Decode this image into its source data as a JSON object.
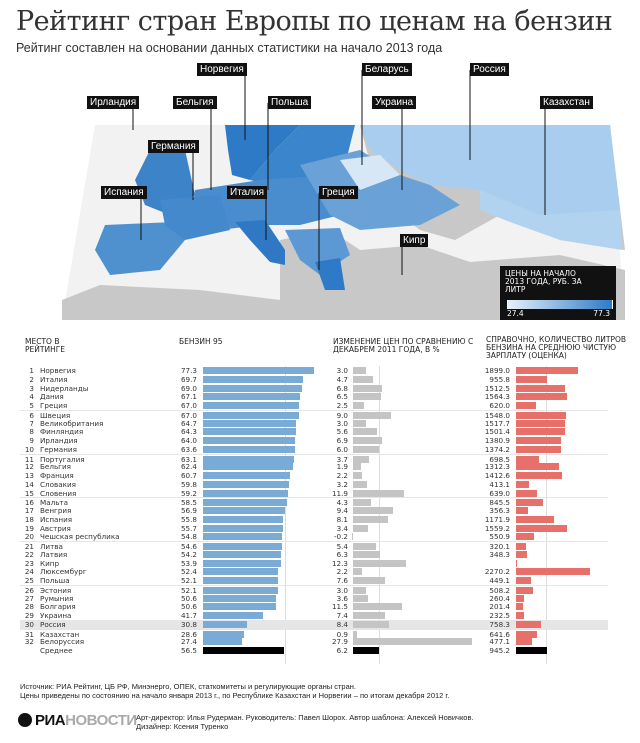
{
  "title": "Рейтинг стран Европы по ценам на бензин",
  "subtitle": "Рейтинг составлен на основании данных статистики на начало 2013 года",
  "map": {
    "labels": [
      "Норвегия",
      "Беларусь",
      "Россия",
      "Ирландия",
      "Бельгия",
      "Польша",
      "Украина",
      "Казахстан",
      "Германия",
      "Испания",
      "Италия",
      "Греция",
      "Кипр"
    ],
    "legend": {
      "title": "ЦЕНЫ НА НАЧАЛО 2013 ГОДА, РУБ. ЗА ЛИТР",
      "min": "27.4",
      "max": "77.3",
      "color_min": "#e6f0fa",
      "color_max": "#2f7ac6"
    },
    "land_color": "#c8c8c8",
    "sea_color": "#f2f2f2"
  },
  "chart_data": {
    "type": "table",
    "headers": {
      "rank": "МЕСТО В РЕЙТИНГЕ",
      "petrol": "БЕНЗИН 95",
      "change": "ИЗМЕНЕНИЕ ЦЕН ПО СРАВНЕНИЮ С ДЕКАБРЕМ 2011 ГОДА, В %",
      "liters": "СПРАВОЧНО, КОЛИЧЕСТВО ЛИТРОВ БЕНЗИНА НА СРЕДНЮЮ ЧИСТУЮ ЗАРПЛАТУ (ОЦЕНКА)"
    },
    "colors": {
      "petrol": "#7aaad6",
      "change": "#c4c4c4",
      "liters": "#e8706a",
      "average": "#000000"
    },
    "rows": [
      {
        "rank": "1",
        "country": "Норвегия",
        "petrol": 77.3,
        "change": 3.0,
        "liters": 1899.0
      },
      {
        "rank": "2",
        "country": "Италия",
        "petrol": 69.7,
        "change": 4.7,
        "liters": 955.8
      },
      {
        "rank": "3",
        "country": "Нидерланды",
        "petrol": 69.0,
        "change": 6.8,
        "liters": 1512.5
      },
      {
        "rank": "4",
        "country": "Дания",
        "petrol": 67.1,
        "change": 6.5,
        "liters": 1564.3
      },
      {
        "rank": "5",
        "country": "Греция",
        "petrol": 67.0,
        "change": 2.5,
        "liters": 620.0
      },
      {
        "rank": "6",
        "country": "Швеция",
        "petrol": 67.0,
        "change": 9.0,
        "liters": 1548.0
      },
      {
        "rank": "7",
        "country": "Великобритания",
        "petrol": 64.7,
        "change": 3.0,
        "liters": 1517.7
      },
      {
        "rank": "8",
        "country": "Финляндия",
        "petrol": 64.3,
        "change": 5.6,
        "liters": 1501.4
      },
      {
        "rank": "9",
        "country": "Ирландия",
        "petrol": 64.0,
        "change": 6.9,
        "liters": 1380.9
      },
      {
        "rank": "10",
        "country": "Германия",
        "petrol": 63.6,
        "change": 6.0,
        "liters": 1374.2
      },
      {
        "rank": "11",
        "country": "Португалия",
        "petrol": 63.1,
        "change": 3.7,
        "liters": 698.5
      },
      {
        "rank": "12",
        "country": "Бельгия",
        "petrol": 62.4,
        "change": 1.9,
        "liters": 1312.3
      },
      {
        "rank": "13",
        "country": "Франция",
        "petrol": 60.7,
        "change": 2.2,
        "liters": 1412.6
      },
      {
        "rank": "14",
        "country": "Словакия",
        "petrol": 59.8,
        "change": 3.2,
        "liters": 413.1
      },
      {
        "rank": "15",
        "country": "Словения",
        "petrol": 59.2,
        "change": 11.9,
        "liters": 639.0
      },
      {
        "rank": "16",
        "country": "Мальта",
        "petrol": 58.5,
        "change": 4.3,
        "liters": 845.5
      },
      {
        "rank": "17",
        "country": "Венгрия",
        "petrol": 56.9,
        "change": 9.4,
        "liters": 356.3
      },
      {
        "rank": "18",
        "country": "Испания",
        "petrol": 55.8,
        "change": 8.1,
        "liters": 1171.9
      },
      {
        "rank": "19",
        "country": "Австрия",
        "petrol": 55.7,
        "change": 3.4,
        "liters": 1559.2
      },
      {
        "rank": "20",
        "country": "Чешская республика",
        "petrol": 54.8,
        "change": -0.2,
        "liters": 550.9
      },
      {
        "rank": "21",
        "country": "Литва",
        "petrol": 54.6,
        "change": 5.4,
        "liters": 320.1
      },
      {
        "rank": "22",
        "country": "Латвия",
        "petrol": 54.2,
        "change": 6.3,
        "liters": 348.3
      },
      {
        "rank": "23",
        "country": "Кипр",
        "petrol": 53.9,
        "change": 12.3,
        "liters": null
      },
      {
        "rank": "24",
        "country": "Люксембург",
        "petrol": 52.4,
        "change": 2.2,
        "liters": 2270.2
      },
      {
        "rank": "25",
        "country": "Польша",
        "petrol": 52.1,
        "change": 7.6,
        "liters": 449.1
      },
      {
        "rank": "26",
        "country": "Эстония",
        "petrol": 52.1,
        "change": 3.0,
        "liters": 508.2
      },
      {
        "rank": "27",
        "country": "Румыния",
        "petrol": 50.6,
        "change": 3.6,
        "liters": 260.4
      },
      {
        "rank": "28",
        "country": "Болгария",
        "petrol": 50.6,
        "change": 11.5,
        "liters": 201.4
      },
      {
        "rank": "29",
        "country": "Украина",
        "petrol": 41.7,
        "change": 7.4,
        "liters": 232.5
      },
      {
        "rank": "30",
        "country": "Россия",
        "petrol": 30.8,
        "change": 8.4,
        "liters": 758.3,
        "highlight": true
      },
      {
        "rank": "31",
        "country": "Казахстан",
        "petrol": 28.6,
        "change": 0.9,
        "liters": 641.6
      },
      {
        "rank": "32",
        "country": "Белоруссия",
        "petrol": 27.4,
        "change": 27.9,
        "liters": 477.1
      },
      {
        "rank": "",
        "country": "Среднее",
        "petrol": 56.5,
        "change": 6.2,
        "liters": 945.2,
        "average": true
      }
    ]
  },
  "footer": {
    "source": "Источник: РИА Рейтинг, ЦБ РФ, Минэнерго, ОПЕК, статкомитеты и регулирующие органы стран.",
    "note": "Цены приведены по состоянию на начало января 2013 г., по Республике Казахстан и Норвегии – по итогам декабря 2012 г.",
    "logo_a": "РИА",
    "logo_b": "НОВОСТИ",
    "credits": "Арт-директор: Илья Рудерман. Руководитель: Павел Шорох. Автор шаблона: Алексей Новичков.",
    "designer": "Дизайнер: Ксения Туренко"
  }
}
